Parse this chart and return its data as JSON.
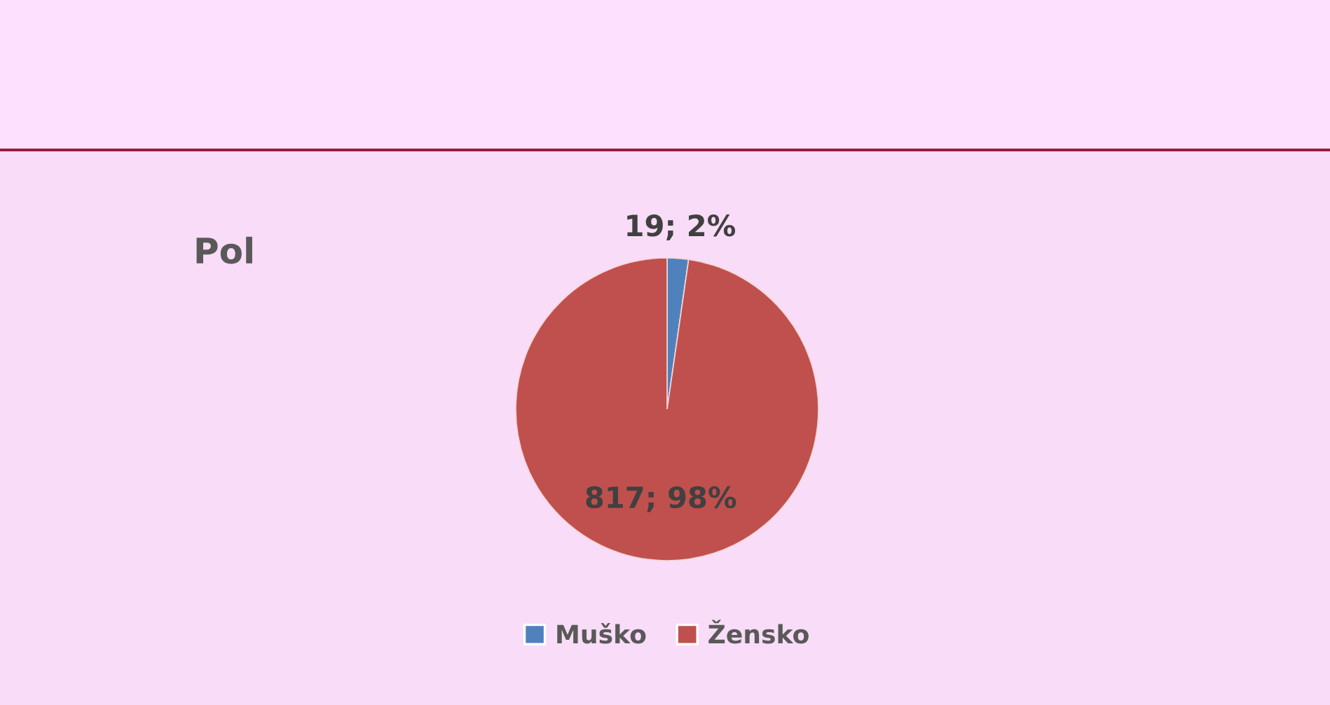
{
  "chart_data": {
    "type": "pie",
    "title": "Pol",
    "categories": [
      "Muško",
      "Žensko"
    ],
    "values": [
      19,
      817
    ],
    "colors": [
      "#4f81bd",
      "#c0504d"
    ],
    "value_labels": [
      "19; 2%",
      "817; 98%"
    ],
    "legend": "bottom"
  }
}
